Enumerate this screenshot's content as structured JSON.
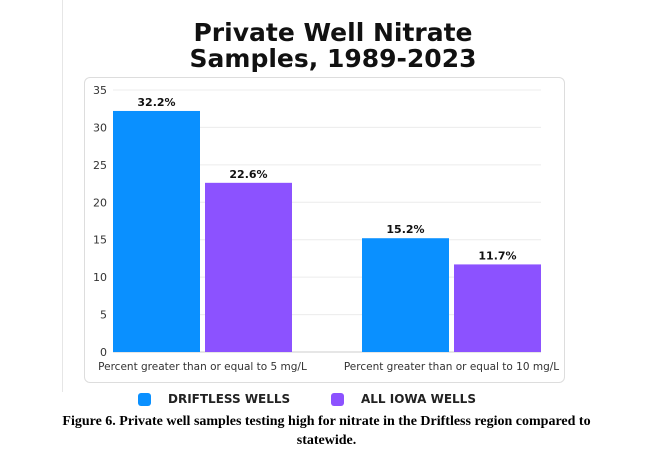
{
  "chart_data": {
    "type": "bar",
    "title_lines": [
      "Private Well Nitrate",
      "Samples, 1989-2023"
    ],
    "categories": [
      "Percent greater than or equal to 5 mg/L",
      "Percent greater than or equal to 10 mg/L"
    ],
    "series": [
      {
        "name": "DRIFTLESS WELLS",
        "color": "#0a90ff",
        "values": [
          32.2,
          15.2
        ],
        "labels": [
          "32.2%",
          "15.2%"
        ]
      },
      {
        "name": "ALL IOWA WELLS",
        "color": "#8c52ff",
        "values": [
          22.6,
          11.7
        ],
        "labels": [
          "22.6%",
          "11.7%"
        ]
      }
    ],
    "ylim": [
      0,
      35
    ],
    "yticks": [
      0,
      5,
      10,
      15,
      20,
      25,
      30,
      35
    ],
    "grid": true,
    "legend": "bottom"
  },
  "caption_lines": [
    "Figure 6. Private well samples testing high for nitrate in the Driftless region compared to",
    "statewide."
  ]
}
